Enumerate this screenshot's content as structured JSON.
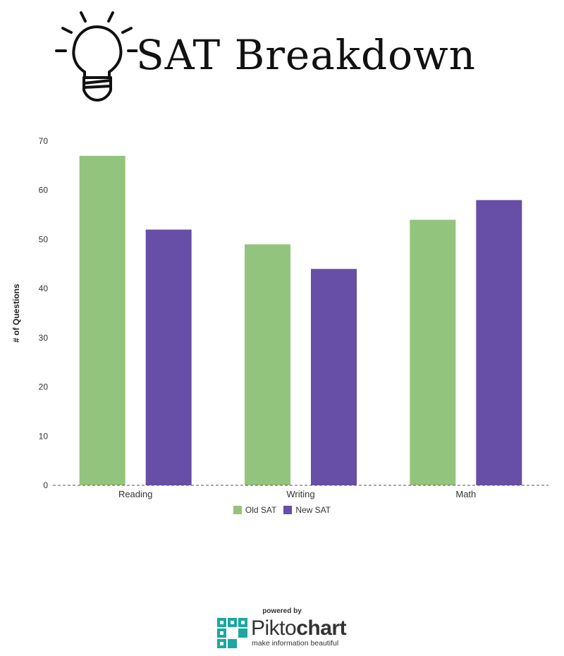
{
  "header": {
    "title": "SAT Breakdown",
    "icon": "lightbulb-icon"
  },
  "chart_data": {
    "type": "bar",
    "title": "SAT Breakdown",
    "xlabel": "",
    "ylabel": "# of Questions",
    "categories": [
      "Reading",
      "Writing",
      "Math"
    ],
    "series": [
      {
        "name": "Old SAT",
        "values": [
          67,
          49,
          54
        ],
        "color": "#93c47d"
      },
      {
        "name": "New SAT",
        "values": [
          52,
          44,
          58
        ],
        "color": "#674ea7"
      }
    ],
    "ylim": [
      0,
      70
    ],
    "yticks": [
      "0",
      "10",
      "20",
      "30",
      "40",
      "50",
      "60",
      "70"
    ],
    "grid": false,
    "legend_position": "bottom"
  },
  "footer": {
    "powered_by": "powered by",
    "brand_light": "Pikto",
    "brand_bold": "chart",
    "tagline": "make information beautiful",
    "brand_color": "#1ba8a0"
  }
}
